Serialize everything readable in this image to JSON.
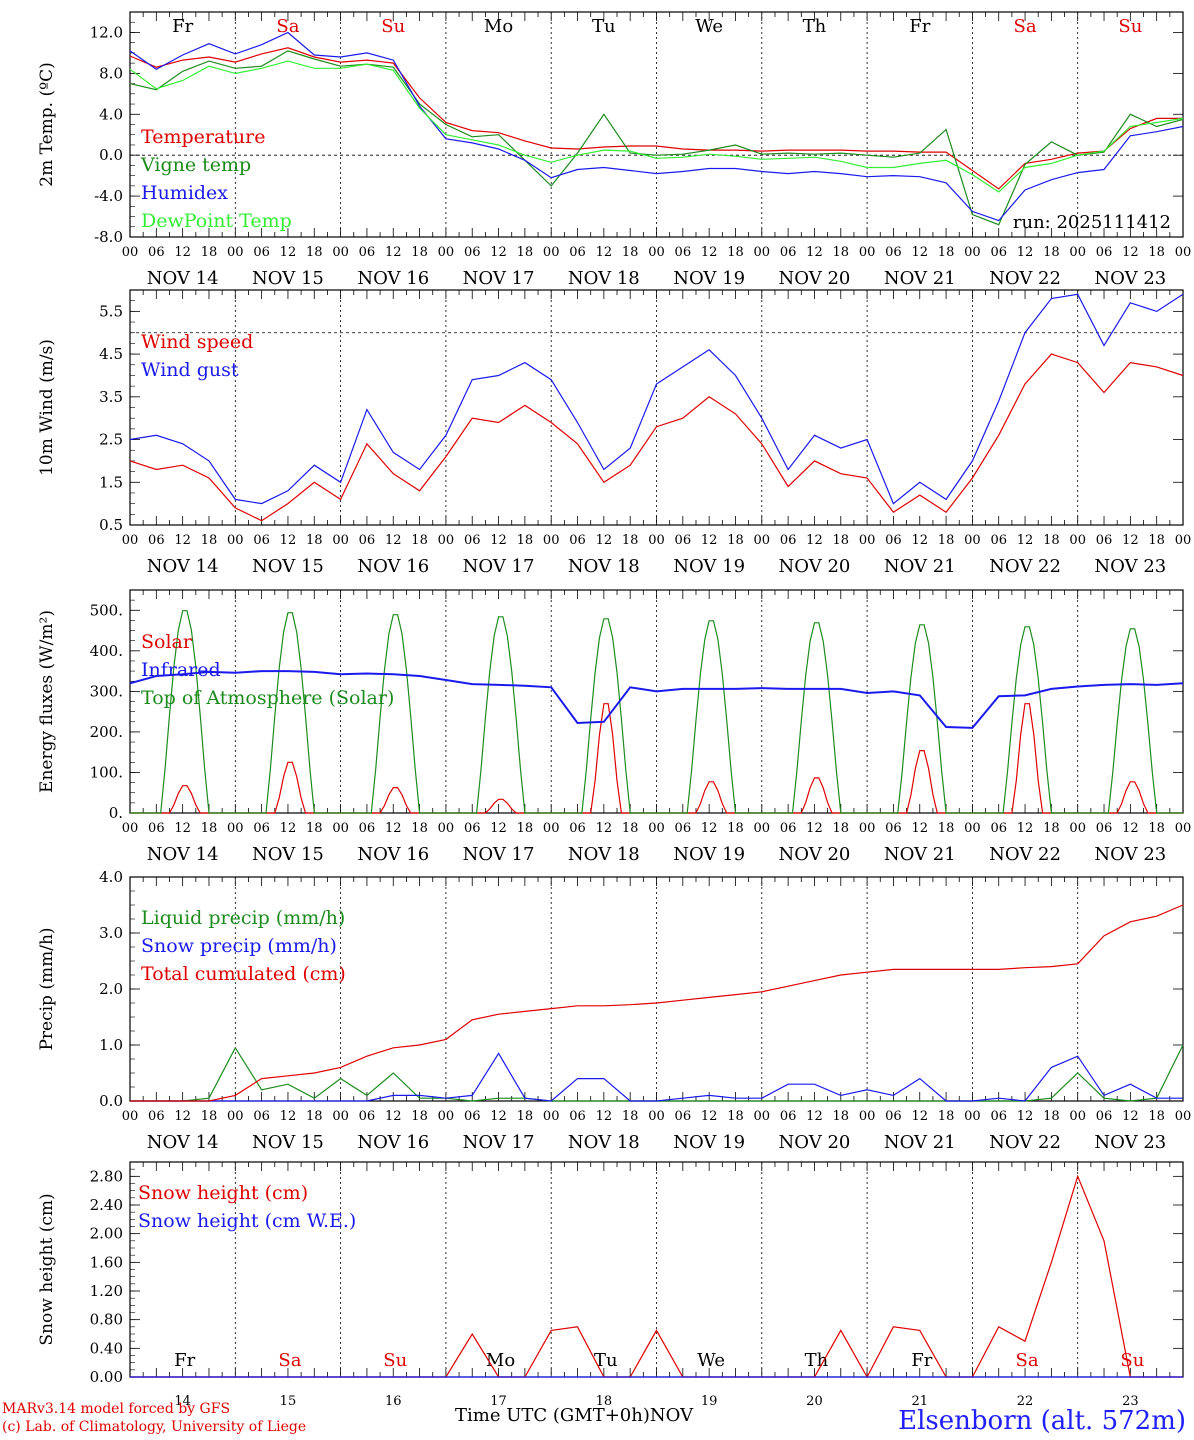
{
  "run_label": "run: 2025111412",
  "footer": {
    "model": "MARv3.14 model forced by GFS",
    "copyright": "(c) Lab. of Climatology, University of Liege",
    "xaxis_title": "Time UTC (GMT+0h)",
    "month": "NOV",
    "station": "Elsenborn (alt. 572m)"
  },
  "colors": {
    "red": "#e00000",
    "green": "#1c8c1c",
    "blue": "#1a1aee",
    "lightgreen": "#33ee33",
    "black": "#000000"
  },
  "weekdays": [
    {
      "label": "Fr",
      "weekend": false
    },
    {
      "label": "Sa",
      "weekend": true
    },
    {
      "label": "Su",
      "weekend": true
    },
    {
      "label": "Mo",
      "weekend": false
    },
    {
      "label": "Tu",
      "weekend": false
    },
    {
      "label": "We",
      "weekend": false
    },
    {
      "label": "Th",
      "weekend": false
    },
    {
      "label": "Fr",
      "weekend": false
    },
    {
      "label": "Sa",
      "weekend": true
    },
    {
      "label": "Su",
      "weekend": true
    }
  ],
  "chart_data": [
    {
      "id": "temp",
      "type": "line",
      "ylabel": "2m Temp. (ºC)",
      "ylim": [
        -8,
        14
      ],
      "yticks": [
        -8,
        -4,
        0,
        4,
        8,
        12
      ],
      "yfmt": 1,
      "refline": 0,
      "show_weekdays_top": true,
      "show_run": true,
      "x_hours": "every 6h from NOV 14 00 UTC to NOV 24 00 UTC",
      "day_labels": [
        "NOV 14",
        "NOV 15",
        "NOV 16",
        "NOV 17",
        "NOV 18",
        "NOV 19",
        "NOV 20",
        "NOV 21",
        "NOV 22",
        "NOV 23"
      ],
      "hour_ticks": [
        "00",
        "06",
        "12",
        "18"
      ],
      "legend": [
        {
          "name": "Temperature",
          "color": "red"
        },
        {
          "name": "Vigne temp",
          "color": "green"
        },
        {
          "name": "Humidex",
          "color": "blue"
        },
        {
          "name": "DewPoint Temp",
          "color": "lightgreen"
        }
      ],
      "series": [
        {
          "name": "Temperature",
          "color": "red",
          "values": [
            9.7,
            8.6,
            9.3,
            9.6,
            9.1,
            9.9,
            10.5,
            9.6,
            9.1,
            9.3,
            9.0,
            5.6,
            3.2,
            2.4,
            2.2,
            1.4,
            0.7,
            0.6,
            0.8,
            0.9,
            0.9,
            0.6,
            0.5,
            0.5,
            0.4,
            0.5,
            0.5,
            0.5,
            0.4,
            0.4,
            0.3,
            0.3,
            -1.5,
            -3.3,
            -0.8,
            -0.4,
            0.2,
            0.4,
            2.6,
            3.6,
            3.6
          ]
        },
        {
          "name": "Vigne temp",
          "color": "green",
          "values": [
            7.0,
            6.4,
            8.2,
            9.2,
            8.5,
            8.7,
            10.2,
            9.4,
            8.7,
            8.9,
            8.6,
            5.0,
            3.0,
            1.8,
            2.0,
            -0.5,
            -3.0,
            0.2,
            4.0,
            0.2,
            0.0,
            0.1,
            0.5,
            1.0,
            0.1,
            0.2,
            0.1,
            0.2,
            0.0,
            -0.2,
            0.2,
            2.5,
            -5.8,
            -6.8,
            -0.9,
            1.3,
            0.0,
            0.3,
            4.0,
            2.8,
            3.5
          ]
        },
        {
          "name": "Humidex",
          "color": "blue",
          "values": [
            10.2,
            8.4,
            9.8,
            10.9,
            9.9,
            10.8,
            12.0,
            9.8,
            9.6,
            10.0,
            9.3,
            4.8,
            1.6,
            1.2,
            0.6,
            -0.5,
            -2.2,
            -1.4,
            -1.2,
            -1.5,
            -1.8,
            -1.6,
            -1.3,
            -1.3,
            -1.6,
            -1.8,
            -1.6,
            -1.8,
            -2.1,
            -2.0,
            -2.1,
            -2.7,
            -5.5,
            -6.4,
            -3.4,
            -2.4,
            -1.7,
            -1.4,
            1.9,
            2.3,
            2.8
          ]
        },
        {
          "name": "DewPoint Temp",
          "color": "lightgreen",
          "values": [
            8.4,
            6.5,
            7.3,
            8.7,
            8.0,
            8.5,
            9.2,
            8.5,
            8.5,
            8.9,
            8.3,
            4.6,
            2.0,
            1.5,
            1.0,
            0.0,
            -0.7,
            0.0,
            0.5,
            0.4,
            -0.3,
            -0.2,
            0.1,
            -0.1,
            -0.4,
            -0.3,
            -0.2,
            -0.6,
            -1.2,
            -1.2,
            -0.8,
            -0.5,
            -1.9,
            -3.6,
            -1.2,
            -0.8,
            0.0,
            0.4,
            2.8,
            3.2,
            3.6
          ]
        }
      ]
    },
    {
      "id": "wind",
      "type": "line",
      "ylabel": "10m Wind (m/s)",
      "ylim": [
        0.5,
        6.0
      ],
      "yticks": [
        0.5,
        1.5,
        2.5,
        3.5,
        4.5,
        5.5
      ],
      "yfmt": 1,
      "refline": 5.0,
      "day_labels": [
        "NOV 14",
        "NOV 15",
        "NOV 16",
        "NOV 17",
        "NOV 18",
        "NOV 19",
        "NOV 20",
        "NOV 21",
        "NOV 22",
        "NOV 23"
      ],
      "hour_ticks": [
        "00",
        "06",
        "12",
        "18"
      ],
      "legend": [
        {
          "name": "Wind speed",
          "color": "red"
        },
        {
          "name": "Wind gust",
          "color": "blue"
        }
      ],
      "series": [
        {
          "name": "Wind speed",
          "color": "red",
          "values": [
            2.0,
            1.8,
            1.9,
            1.6,
            0.9,
            0.6,
            1.0,
            1.5,
            1.1,
            2.4,
            1.7,
            1.3,
            2.1,
            3.0,
            2.9,
            3.3,
            2.9,
            2.4,
            1.5,
            1.9,
            2.8,
            3.0,
            3.5,
            3.1,
            2.4,
            1.4,
            2.0,
            1.7,
            1.6,
            0.8,
            1.2,
            0.8,
            1.6,
            2.6,
            3.8,
            4.5,
            4.3,
            3.6,
            4.3,
            4.2,
            4.0
          ]
        },
        {
          "name": "Wind gust",
          "color": "blue",
          "values": [
            2.5,
            2.6,
            2.4,
            2.0,
            1.1,
            1.0,
            1.3,
            1.9,
            1.5,
            3.2,
            2.2,
            1.8,
            2.6,
            3.9,
            4.0,
            4.3,
            3.9,
            2.9,
            1.8,
            2.3,
            3.8,
            4.2,
            4.6,
            4.0,
            3.0,
            1.8,
            2.6,
            2.3,
            2.5,
            1.0,
            1.5,
            1.1,
            2.0,
            3.4,
            5.0,
            5.8,
            5.9,
            4.7,
            5.7,
            5.5,
            5.9
          ]
        }
      ]
    },
    {
      "id": "energy",
      "type": "line",
      "ylabel": "Energy fluxes (W/m²)",
      "ylim": [
        0,
        550
      ],
      "yticks": [
        0,
        100,
        200,
        300,
        400,
        500
      ],
      "yfmt": 0,
      "day_labels": [
        "NOV 14",
        "NOV 15",
        "NOV 16",
        "NOV 17",
        "NOV 18",
        "NOV 19",
        "NOV 20",
        "NOV 21",
        "NOV 22",
        "NOV 23"
      ],
      "hour_ticks": [
        "00",
        "06",
        "12",
        "18"
      ],
      "legend": [
        {
          "name": "Solar",
          "color": "red"
        },
        {
          "name": "Infrared",
          "color": "blue"
        },
        {
          "name": "Top of Atmosphere (Solar)",
          "color": "green"
        }
      ],
      "series": [
        {
          "name": "Solar",
          "daily": true,
          "color": "red",
          "peaks": [
            70,
            130,
            65,
            35,
            280,
            80,
            90,
            160,
            280,
            80
          ]
        },
        {
          "name": "Top of Atmosphere (Solar)",
          "daily": true,
          "color": "green",
          "peaks": [
            505,
            500,
            495,
            490,
            485,
            480,
            475,
            470,
            465,
            460
          ]
        },
        {
          "name": "Infrared",
          "color": "blue",
          "values": [
            320,
            338,
            342,
            348,
            346,
            350,
            350,
            348,
            342,
            344,
            342,
            338,
            328,
            318,
            316,
            314,
            310,
            222,
            225,
            310,
            300,
            306,
            306,
            306,
            308,
            306,
            306,
            306,
            296,
            300,
            290,
            212,
            210,
            288,
            290,
            306,
            312,
            316,
            318,
            316,
            320
          ]
        }
      ]
    },
    {
      "id": "precip",
      "type": "line",
      "ylabel": "Precip (mm/h)",
      "ylim": [
        0,
        4
      ],
      "yticks": [
        0,
        1,
        2,
        3,
        4
      ],
      "yfmt": 1,
      "day_labels": [
        "NOV 14",
        "NOV 15",
        "NOV 16",
        "NOV 17",
        "NOV 18",
        "NOV 19",
        "NOV 20",
        "NOV 21",
        "NOV 22",
        "NOV 23"
      ],
      "hour_ticks": [
        "00",
        "06",
        "12",
        "18"
      ],
      "legend": [
        {
          "name": "Liquid precip (mm/h)",
          "color": "green"
        },
        {
          "name": "Snow precip (mm/h)",
          "color": "blue"
        },
        {
          "name": "Total cumulated (cm)",
          "color": "red"
        }
      ],
      "series": [
        {
          "name": "Liquid precip (mm/h)",
          "color": "green",
          "values": [
            0,
            0,
            0,
            0.05,
            0.95,
            0.2,
            0.3,
            0.05,
            0.4,
            0.1,
            0.5,
            0.05,
            0.05,
            0,
            0.05,
            0.05,
            0,
            0,
            0,
            0,
            0,
            0,
            0,
            0,
            0,
            0,
            0,
            0,
            0,
            0,
            0,
            0,
            0,
            0,
            0,
            0.05,
            0.5,
            0.05,
            0,
            0.05,
            1.0
          ]
        },
        {
          "name": "Snow precip (mm/h)",
          "color": "blue",
          "values": [
            0,
            0,
            0,
            0,
            0,
            0,
            0,
            0,
            0,
            0,
            0.1,
            0.1,
            0.05,
            0.1,
            0.85,
            0.05,
            0,
            0.4,
            0.4,
            0,
            0,
            0.05,
            0.1,
            0.05,
            0.05,
            0.3,
            0.3,
            0.1,
            0.2,
            0.1,
            0.4,
            0,
            0,
            0.05,
            0,
            0.6,
            0.8,
            0.1,
            0.3,
            0.05,
            0.05
          ]
        },
        {
          "name": "Total cumulated (cm)",
          "color": "red",
          "values": [
            0,
            0,
            0,
            0,
            0.1,
            0.4,
            0.45,
            0.5,
            0.6,
            0.8,
            0.95,
            1.0,
            1.1,
            1.45,
            1.55,
            1.6,
            1.65,
            1.7,
            1.7,
            1.72,
            1.75,
            1.8,
            1.85,
            1.9,
            1.95,
            2.05,
            2.15,
            2.25,
            2.3,
            2.35,
            2.35,
            2.35,
            2.35,
            2.35,
            2.38,
            2.4,
            2.45,
            2.95,
            3.2,
            3.3,
            3.5
          ]
        }
      ]
    },
    {
      "id": "snow",
      "type": "line",
      "ylabel": "Snow height (cm)",
      "ylim": [
        0,
        3.0
      ],
      "yticks": [
        0,
        0.4,
        0.8,
        1.2,
        1.6,
        2.0,
        2.4,
        2.8
      ],
      "yfmt": 2,
      "show_weekdays_bottom": true,
      "day_labels": [
        "14",
        "15",
        "16",
        "17",
        "18",
        "19",
        "20",
        "21",
        "22",
        "23"
      ],
      "legend": [
        {
          "name": "Snow height (cm)",
          "color": "red"
        },
        {
          "name": "Snow height (cm W.E.)",
          "color": "blue"
        }
      ],
      "series": [
        {
          "name": "Snow height (cm)",
          "color": "red",
          "values": [
            0,
            0,
            0,
            0,
            0,
            0,
            0,
            0,
            0,
            0,
            0,
            0,
            0,
            0.6,
            0,
            0,
            0.65,
            0.7,
            0,
            0,
            0.65,
            0,
            0,
            0,
            0,
            0,
            0,
            0.65,
            0,
            0.7,
            0.65,
            0,
            0,
            0.7,
            0.5,
            1.6,
            2.8,
            1.9,
            0,
            0,
            0
          ]
        },
        {
          "name": "Snow height (cm W.E.)",
          "color": "blue",
          "values": [
            0,
            0,
            0,
            0,
            0,
            0,
            0,
            0,
            0,
            0,
            0,
            0,
            0,
            0,
            0,
            0,
            0,
            0,
            0,
            0,
            0,
            0,
            0,
            0,
            0,
            0,
            0,
            0,
            0,
            0,
            0,
            0,
            0,
            0,
            0,
            0,
            0,
            0,
            0,
            0,
            0
          ]
        }
      ]
    }
  ]
}
